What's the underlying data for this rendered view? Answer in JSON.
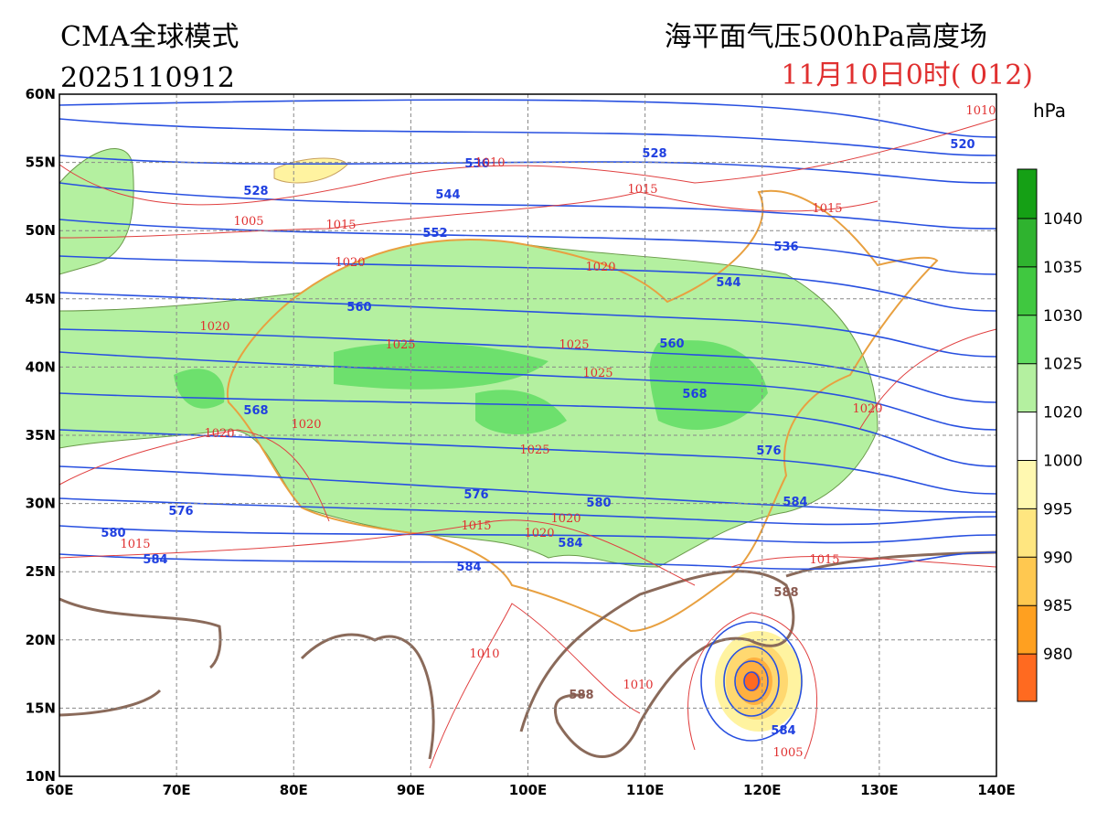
{
  "header": {
    "model": "CMA全球模式",
    "init": "2025110912",
    "title": "海平面气压500hPa高度场",
    "valid": "11月10日0时( 012)"
  },
  "map": {
    "lon_ticks": [
      {
        "value": 60,
        "label": "60E"
      },
      {
        "value": 70,
        "label": "70E"
      },
      {
        "value": 80,
        "label": "80E"
      },
      {
        "value": 90,
        "label": "90E"
      },
      {
        "value": 100,
        "label": "100E"
      },
      {
        "value": 110,
        "label": "110E"
      },
      {
        "value": 120,
        "label": "120E"
      },
      {
        "value": 130,
        "label": "130E"
      },
      {
        "value": 140,
        "label": "140E"
      }
    ],
    "lat_ticks": [
      {
        "value": 60,
        "label": "60N"
      },
      {
        "value": 55,
        "label": "55N"
      },
      {
        "value": 50,
        "label": "50N"
      },
      {
        "value": 45,
        "label": "45N"
      },
      {
        "value": 40,
        "label": "40N"
      },
      {
        "value": 35,
        "label": "35N"
      },
      {
        "value": 30,
        "label": "30N"
      },
      {
        "value": 25,
        "label": "25N"
      },
      {
        "value": 20,
        "label": "20N"
      },
      {
        "value": 15,
        "label": "15N"
      },
      {
        "value": 10,
        "label": "10N"
      }
    ],
    "lonlim": [
      60,
      140
    ],
    "latlim": [
      10,
      60
    ],
    "height_labels": [
      528,
      536,
      544,
      552,
      528,
      520,
      536,
      544,
      560,
      560,
      568,
      568,
      576,
      576,
      576,
      580,
      580,
      584,
      584,
      584,
      584,
      584
    ],
    "ridge_labels": [
      588,
      588
    ],
    "pressure_labels": [
      1010,
      1010,
      1015,
      1015,
      1005,
      1015,
      1020,
      1020,
      1020,
      1025,
      1025,
      1025,
      1020,
      1020,
      1025,
      1020,
      1015,
      1015,
      1020,
      1020,
      1015,
      1010,
      1010,
      1005
    ]
  },
  "colorbar": {
    "unit": "hPa",
    "ticks": [
      1040,
      1035,
      1030,
      1025,
      1020,
      1000,
      995,
      990,
      985,
      980
    ]
  }
}
